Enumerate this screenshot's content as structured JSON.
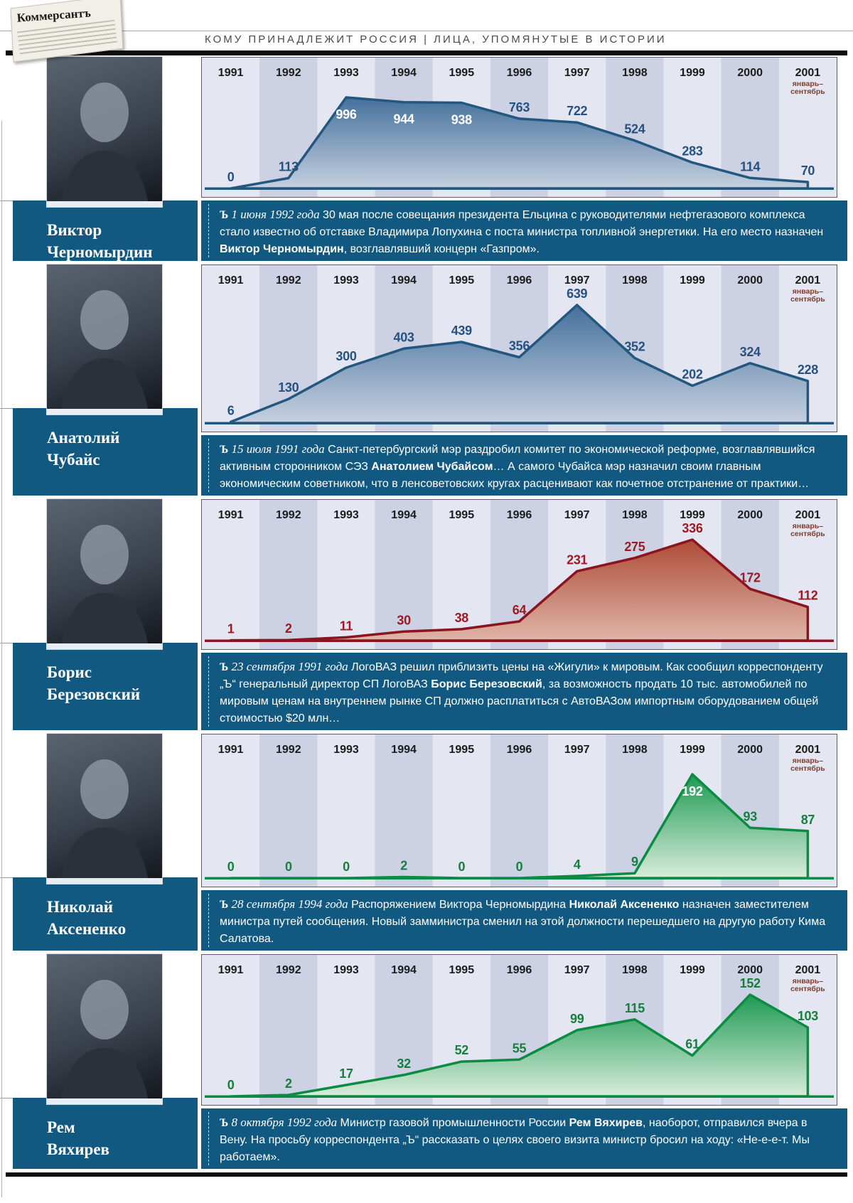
{
  "header": {
    "logo_text": "Коммерсантъ",
    "rubric": "КОМУ ПРИНАДЛЕЖИТ РОССИЯ | ЛИЦА, УПОМЯНУТЫЕ В ИСТОРИИ"
  },
  "chart_data": {
    "type": "area",
    "title": "Число упоминаний по годам",
    "categories": [
      "1991",
      "1992",
      "1993",
      "1994",
      "1995",
      "1996",
      "1997",
      "1998",
      "1999",
      "2000",
      "2001"
    ],
    "last_category_note_line1": "январь–",
    "last_category_note_line2": "сентябрь",
    "grid": false,
    "series": [
      {
        "name": "Виктор Черномырдин",
        "values": [
          0,
          113,
          996,
          944,
          938,
          763,
          722,
          524,
          283,
          114,
          70
        ]
      },
      {
        "name": "Анатолий Чубайс",
        "values": [
          6,
          130,
          300,
          403,
          439,
          356,
          639,
          352,
          202,
          324,
          228
        ]
      },
      {
        "name": "Борис Березовский",
        "values": [
          1,
          2,
          11,
          30,
          38,
          64,
          231,
          275,
          336,
          172,
          112
        ]
      },
      {
        "name": "Николай Аксененко",
        "values": [
          0,
          0,
          0,
          2,
          0,
          0,
          4,
          9,
          192,
          93,
          87
        ]
      },
      {
        "name": "Рем Вяхирев",
        "values": [
          0,
          2,
          17,
          32,
          52,
          55,
          99,
          115,
          61,
          152,
          103
        ]
      }
    ]
  },
  "colors": {
    "textbox_bg": "#115981",
    "column_light": "#e4e7f1",
    "column_dark": "#ccd2e3",
    "year_note": "#7b3f2f",
    "palettes": {
      "blue": {
        "stroke": "#24577f",
        "fill_top": "#44709c",
        "fill_bottom": "#c6d1e0",
        "label": "#27517e"
      },
      "red": {
        "stroke": "#8c1420",
        "fill_top": "#ad4b36",
        "fill_bottom": "#e0b5a8",
        "label": "#9e1a23"
      },
      "green": {
        "stroke": "#0b8c43",
        "fill_top": "#1d9a52",
        "fill_bottom": "#d9ecdb",
        "label": "#157f3e"
      }
    }
  },
  "sections": [
    {
      "name_line1": "Виктор",
      "name_line2": "Черномырдин",
      "palette": "blue",
      "label_inside": [
        2,
        3,
        4
      ],
      "note_segments": [
        {
          "t": "Ъ",
          "logo": 1
        },
        {
          "t": " 1 июня 1992 года",
          "i": 1
        },
        {
          "t": "  30 мая после совещания президента Ельцина с руководителями нефтегазового комплекса стало известно об отставке Владимира Лопухина с поста министра топливной энергетики. На его место назначен "
        },
        {
          "t": "Виктор Черномырдин",
          "b": 1
        },
        {
          "t": ", возглавлявший концерн «Газпром»."
        }
      ]
    },
    {
      "name_line1": "Анатолий",
      "name_line2": "Чубайс",
      "palette": "blue",
      "label_inside": [],
      "note_segments": [
        {
          "t": "Ъ",
          "logo": 1
        },
        {
          "t": " 15 июля 1991 года",
          "i": 1
        },
        {
          "t": "  Санкт-петербургский мэр раздробил комитет по экономической реформе, возглавлявшийся активным сторонником СЭЗ "
        },
        {
          "t": "Анатолием Чубайсом",
          "b": 1
        },
        {
          "t": "… А самого Чубайса мэр назначил своим главным экономическим советником, что в ленсоветовских кругах расценивают как почетное отстранение от практики…"
        }
      ]
    },
    {
      "name_line1": "Борис",
      "name_line2": "Березовский",
      "palette": "red",
      "label_inside": [],
      "note_segments": [
        {
          "t": "Ъ",
          "logo": 1
        },
        {
          "t": " 23 сентября 1991 года",
          "i": 1
        },
        {
          "t": "  ЛогоВАЗ решил приблизить цены на «Жигули» к мировым. Как сообщил корреспонденту „Ъ“ генеральный директор СП ЛогоВАЗ "
        },
        {
          "t": "Борис Березовский",
          "b": 1
        },
        {
          "t": ", за возможность продать 10 тыс. автомобилей по мировым ценам на внутреннем рынке СП должно расплатиться с АвтоВАЗом импортным оборудованием общей стоимостью $20 млн…"
        }
      ]
    },
    {
      "name_line1": "Николай",
      "name_line2": "Аксененко",
      "palette": "green",
      "label_inside": [
        8
      ],
      "note_segments": [
        {
          "t": "Ъ",
          "logo": 1
        },
        {
          "t": " 28 сентября 1994 года",
          "i": 1
        },
        {
          "t": "  Распоряжением Виктора Черномырдина "
        },
        {
          "t": "Николай Аксененко",
          "b": 1
        },
        {
          "t": " назначен заместителем министра путей сообщения. Новый замминистра сменил на этой должности перешедшего на другую работу Кима Салатова."
        }
      ]
    },
    {
      "name_line1": "Рем",
      "name_line2": "Вяхирев",
      "palette": "green",
      "label_inside": [],
      "note_segments": [
        {
          "t": "Ъ",
          "logo": 1
        },
        {
          "t": " 8 октября 1992 года",
          "i": 1
        },
        {
          "t": " Министр газовой промышленности России "
        },
        {
          "t": "Рем Вяхирев",
          "b": 1
        },
        {
          "t": ", наоборот, отправился вчера в Вену. На просьбу корреспондента „Ъ“ рассказать о целях своего визита министр бросил на ходу: «Не-е-е-т. Мы работаем»."
        }
      ]
    }
  ]
}
